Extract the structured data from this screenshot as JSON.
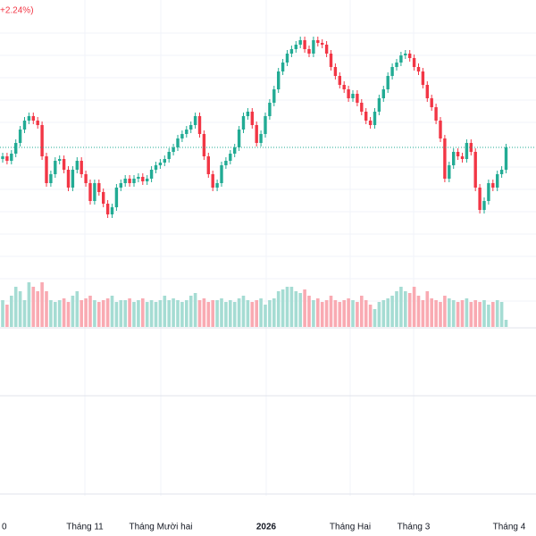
{
  "chart_data": {
    "type": "candlestick",
    "change_label": "+2.24%)",
    "x_labels": [
      "0",
      "Tháng 11",
      "Tháng Mười hai",
      "2026",
      "Tháng Hai",
      "Tháng 3",
      "Tháng 4"
    ],
    "up_color": "#22ab94",
    "down_color": "#f23645",
    "volume_up_color": "#a5dcd3",
    "volume_down_color": "#f9aab2",
    "ylim": [
      0,
      300
    ],
    "open": [
      122,
      125,
      120,
      128,
      140,
      155,
      165,
      170,
      165,
      160,
      125,
      95,
      105,
      120,
      122,
      110,
      90,
      110,
      120,
      105,
      95,
      75,
      95,
      85,
      72,
      60,
      68,
      90,
      95,
      100,
      95,
      100,
      102,
      97,
      100,
      110,
      115,
      118,
      122,
      130,
      135,
      145,
      150,
      155,
      160,
      170,
      150,
      125,
      105,
      90,
      95,
      115,
      120,
      128,
      135,
      155,
      170,
      175,
      160,
      140,
      150,
      170,
      185,
      200,
      220,
      230,
      240,
      245,
      250,
      255,
      245,
      240,
      255,
      252,
      250,
      240,
      225,
      215,
      205,
      200,
      190,
      195,
      185,
      175,
      165,
      160,
      175,
      190,
      200,
      215,
      225,
      230,
      238,
      240,
      235,
      225,
      220,
      205,
      190,
      180,
      165,
      145,
      100,
      115,
      130,
      125,
      122,
      140,
      130,
      90,
      65,
      75,
      95,
      90,
      105,
      110
    ],
    "high": [
      129,
      129,
      132,
      144,
      159,
      169,
      174,
      174,
      169,
      164,
      129,
      109,
      124,
      126,
      126,
      114,
      114,
      124,
      124,
      109,
      99,
      99,
      99,
      89,
      76,
      72,
      94,
      99,
      104,
      104,
      104,
      106,
      106,
      104,
      114,
      119,
      122,
      126,
      134,
      139,
      149,
      154,
      159,
      164,
      174,
      174,
      154,
      129,
      109,
      99,
      119,
      124,
      132,
      139,
      159,
      174,
      179,
      179,
      164,
      154,
      174,
      189,
      204,
      224,
      234,
      244,
      249,
      254,
      259,
      259,
      249,
      259,
      259,
      256,
      254,
      244,
      229,
      219,
      209,
      204,
      199,
      199,
      189,
      179,
      169,
      179,
      194,
      204,
      219,
      229,
      234,
      242,
      244,
      244,
      239,
      229,
      224,
      209,
      194,
      184,
      169,
      149,
      119,
      134,
      134,
      129,
      144,
      144,
      134,
      94,
      79,
      99,
      99,
      109,
      114,
      139
    ],
    "low": [
      118,
      116,
      116,
      124,
      136,
      151,
      161,
      161,
      156,
      121,
      91,
      91,
      101,
      116,
      106,
      86,
      86,
      106,
      101,
      91,
      71,
      71,
      81,
      68,
      56,
      56,
      64,
      86,
      91,
      91,
      91,
      96,
      93,
      93,
      96,
      106,
      111,
      114,
      118,
      126,
      131,
      141,
      146,
      151,
      156,
      146,
      121,
      101,
      86,
      86,
      91,
      111,
      116,
      124,
      131,
      151,
      166,
      156,
      136,
      136,
      146,
      166,
      181,
      196,
      216,
      226,
      236,
      241,
      246,
      241,
      236,
      236,
      248,
      246,
      236,
      221,
      211,
      201,
      196,
      186,
      186,
      181,
      171,
      161,
      156,
      156,
      171,
      186,
      196,
      211,
      221,
      226,
      234,
      231,
      221,
      216,
      201,
      186,
      176,
      161,
      141,
      96,
      96,
      111,
      121,
      118,
      118,
      126,
      86,
      61,
      61,
      71,
      86,
      86,
      101,
      106
    ],
    "close": [
      125,
      120,
      128,
      140,
      155,
      165,
      170,
      165,
      160,
      125,
      95,
      105,
      120,
      122,
      110,
      90,
      110,
      120,
      105,
      95,
      75,
      95,
      85,
      72,
      60,
      68,
      90,
      95,
      100,
      95,
      100,
      102,
      97,
      100,
      110,
      115,
      118,
      122,
      130,
      135,
      145,
      150,
      155,
      160,
      170,
      150,
      125,
      105,
      90,
      95,
      115,
      120,
      128,
      135,
      155,
      170,
      175,
      160,
      140,
      150,
      170,
      185,
      200,
      220,
      230,
      240,
      245,
      250,
      255,
      245,
      240,
      255,
      252,
      250,
      240,
      225,
      215,
      205,
      200,
      190,
      195,
      185,
      175,
      165,
      160,
      175,
      190,
      200,
      215,
      225,
      230,
      238,
      240,
      235,
      225,
      220,
      205,
      190,
      180,
      165,
      145,
      100,
      115,
      130,
      125,
      122,
      140,
      130,
      90,
      65,
      75,
      95,
      90,
      105,
      110,
      135
    ],
    "volume": [
      30,
      25,
      35,
      45,
      40,
      30,
      50,
      45,
      40,
      50,
      40,
      30,
      28,
      30,
      32,
      28,
      35,
      40,
      30,
      32,
      35,
      30,
      28,
      30,
      32,
      35,
      28,
      30,
      30,
      32,
      28,
      30,
      32,
      28,
      30,
      28,
      30,
      35,
      30,
      32,
      30,
      28,
      30,
      35,
      38,
      30,
      32,
      28,
      30,
      30,
      32,
      28,
      30,
      28,
      32,
      35,
      30,
      28,
      30,
      32,
      25,
      30,
      32,
      40,
      42,
      45,
      45,
      40,
      38,
      42,
      35,
      30,
      32,
      28,
      30,
      35,
      30,
      28,
      30,
      32,
      30,
      28,
      35,
      30,
      25,
      20,
      28,
      30,
      32,
      35,
      40,
      45,
      40,
      38,
      45,
      35,
      30,
      40,
      32,
      30,
      28,
      35,
      32,
      30,
      28,
      30,
      32,
      28,
      30,
      28,
      30,
      25,
      28,
      30,
      28,
      8
    ]
  }
}
